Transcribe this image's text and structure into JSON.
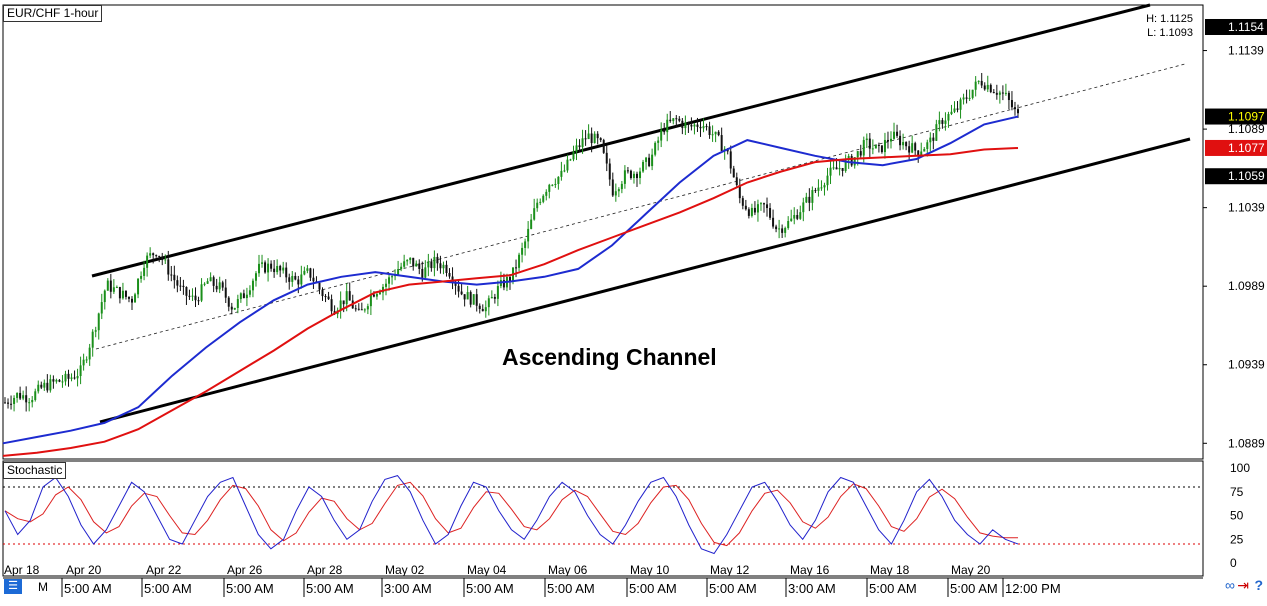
{
  "chart_title": "EUR/CHF 1-hour",
  "hl": {
    "high": "H: 1.1125",
    "low": "L: 1.1093"
  },
  "annotation": "Ascending Channel",
  "indicator_label": "Stochastic",
  "bottom_bar": {
    "period_label": "M"
  },
  "icons": [
    "menu-icon",
    "link-icon",
    "arrow-icon",
    "help-icon"
  ],
  "colors": {
    "fast_ma": "#1d2bd0",
    "slow_ma": "#e01010",
    "bull_candle": "#1a8f1a",
    "bear_candle": "#111111",
    "stoch_k": "#2222cc",
    "stoch_d": "#dd2222"
  },
  "chart_data": {
    "type": "candlestick",
    "ylim": [
      1.0879,
      1.1168
    ],
    "y_ticks": [
      "1.1139",
      "1.1089",
      "1.1039",
      "1.0989",
      "1.0939",
      "1.0889"
    ],
    "price_tags": [
      {
        "label": "1.1154",
        "value": 1.1154,
        "bg": "#000000",
        "fg": "#ffffff"
      },
      {
        "label": "1.1097",
        "value": 1.1097,
        "bg": "#000000",
        "fg": "#ffff00"
      },
      {
        "label": "1.1077",
        "value": 1.1077,
        "bg": "#e01010",
        "fg": "#ffffff"
      },
      {
        "label": "1.1059",
        "value": 1.1059,
        "bg": "#000000",
        "fg": "#ffffff"
      }
    ],
    "date_labels": [
      "Apr 18",
      "Apr 20",
      "Apr 22",
      "Apr 26",
      "Apr 28",
      "May 02",
      "May 04",
      "May 06",
      "May 10",
      "May 12",
      "May 16",
      "May 18",
      "May 20"
    ],
    "time_labels": [
      "5:00 AM",
      "5:00 AM",
      "5:00 AM",
      "5:00 AM",
      "3:00 AM",
      "5:00 AM",
      "5:00 AM",
      "5:00 AM",
      "5:00 AM",
      "3:00 AM",
      "5:00 AM",
      "5:00 AM",
      "12:00 PM"
    ],
    "price_path": [
      1.0915,
      1.092,
      1.0918,
      1.0925,
      1.0928,
      1.093,
      1.0935,
      1.096,
      1.099,
      1.0985,
      1.098,
      1.1005,
      1.1012,
      1.0998,
      1.0985,
      1.098,
      1.0992,
      1.0988,
      1.0975,
      1.0985,
      1.1,
      1.1002,
      1.0997,
      1.0992,
      1.0998,
      1.0985,
      1.0975,
      1.0982,
      1.097,
      1.0985,
      1.099,
      1.1,
      1.1005,
      1.0998,
      1.1005,
      1.1,
      1.0985,
      1.098,
      1.0975,
      1.0988,
      1.0995,
      1.1015,
      1.1042,
      1.1055,
      1.106,
      1.1075,
      1.1085,
      1.108,
      1.105,
      1.106,
      1.1062,
      1.107,
      1.109,
      1.1095,
      1.109,
      1.1093,
      1.1085,
      1.1075,
      1.1045,
      1.1035,
      1.104,
      1.1025,
      1.103,
      1.104,
      1.105,
      1.106,
      1.1065,
      1.107,
      1.108,
      1.1075,
      1.1085,
      1.108,
      1.1075,
      1.108,
      1.1095,
      1.11,
      1.111,
      1.112,
      1.1115,
      1.111,
      1.1097
    ],
    "series": [
      {
        "name": "fast_ma",
        "values": [
          1.0889,
          1.0893,
          1.0897,
          1.0902,
          1.0912,
          1.0932,
          1.095,
          1.0966,
          1.098,
          1.099,
          1.0995,
          1.0998,
          1.0995,
          1.0992,
          1.099,
          1.0992,
          1.0995,
          1.1,
          1.1015,
          1.1035,
          1.1055,
          1.1072,
          1.1082,
          1.1077,
          1.1072,
          1.1068,
          1.1066,
          1.107,
          1.108,
          1.1092,
          1.1097
        ]
      },
      {
        "name": "slow_ma",
        "values": [
          1.0881,
          1.0883,
          1.0886,
          1.089,
          1.0898,
          1.091,
          1.0922,
          1.0935,
          1.0948,
          1.0962,
          1.0974,
          1.0985,
          1.099,
          1.0992,
          1.0994,
          1.0996,
          1.1003,
          1.1012,
          1.102,
          1.1028,
          1.1036,
          1.1045,
          1.1055,
          1.1062,
          1.1068,
          1.107,
          1.1071,
          1.1072,
          1.1073,
          1.1076,
          1.1077
        ]
      }
    ],
    "stochastic": {
      "levels": {
        "upper": 80,
        "lower": 20
      },
      "y_ticks": [
        "100",
        "75",
        "50",
        "25",
        "0"
      ],
      "k": [
        55,
        30,
        45,
        80,
        90,
        70,
        40,
        20,
        35,
        60,
        85,
        75,
        50,
        25,
        20,
        45,
        70,
        85,
        90,
        60,
        30,
        15,
        25,
        55,
        80,
        70,
        45,
        25,
        35,
        65,
        88,
        92,
        75,
        45,
        20,
        30,
        60,
        85,
        80,
        55,
        35,
        25,
        45,
        70,
        85,
        75,
        50,
        30,
        20,
        40,
        65,
        85,
        90,
        70,
        40,
        15,
        10,
        30,
        55,
        80,
        85,
        65,
        40,
        25,
        45,
        75,
        90,
        85,
        60,
        35,
        20,
        45,
        75,
        88,
        70,
        45,
        30,
        20,
        35,
        25,
        20
      ]
    }
  }
}
